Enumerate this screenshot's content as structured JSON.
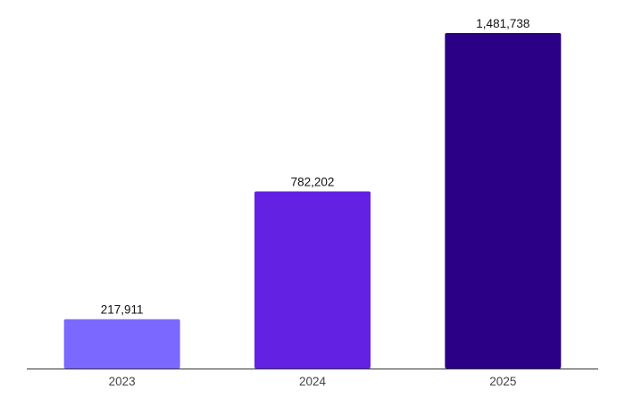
{
  "chart_data": {
    "type": "bar",
    "title": "",
    "xlabel": "",
    "ylabel": "",
    "categories": [
      "2023",
      "2024",
      "2025"
    ],
    "values": [
      217911,
      782202,
      1481738
    ],
    "value_labels": [
      "217,911",
      "782,202",
      "1,481,738"
    ],
    "colors": [
      "#7b68ff",
      "#6322e3",
      "#2b0087"
    ],
    "ylim": [
      0,
      1481738
    ],
    "grid": false,
    "legend": "none"
  }
}
